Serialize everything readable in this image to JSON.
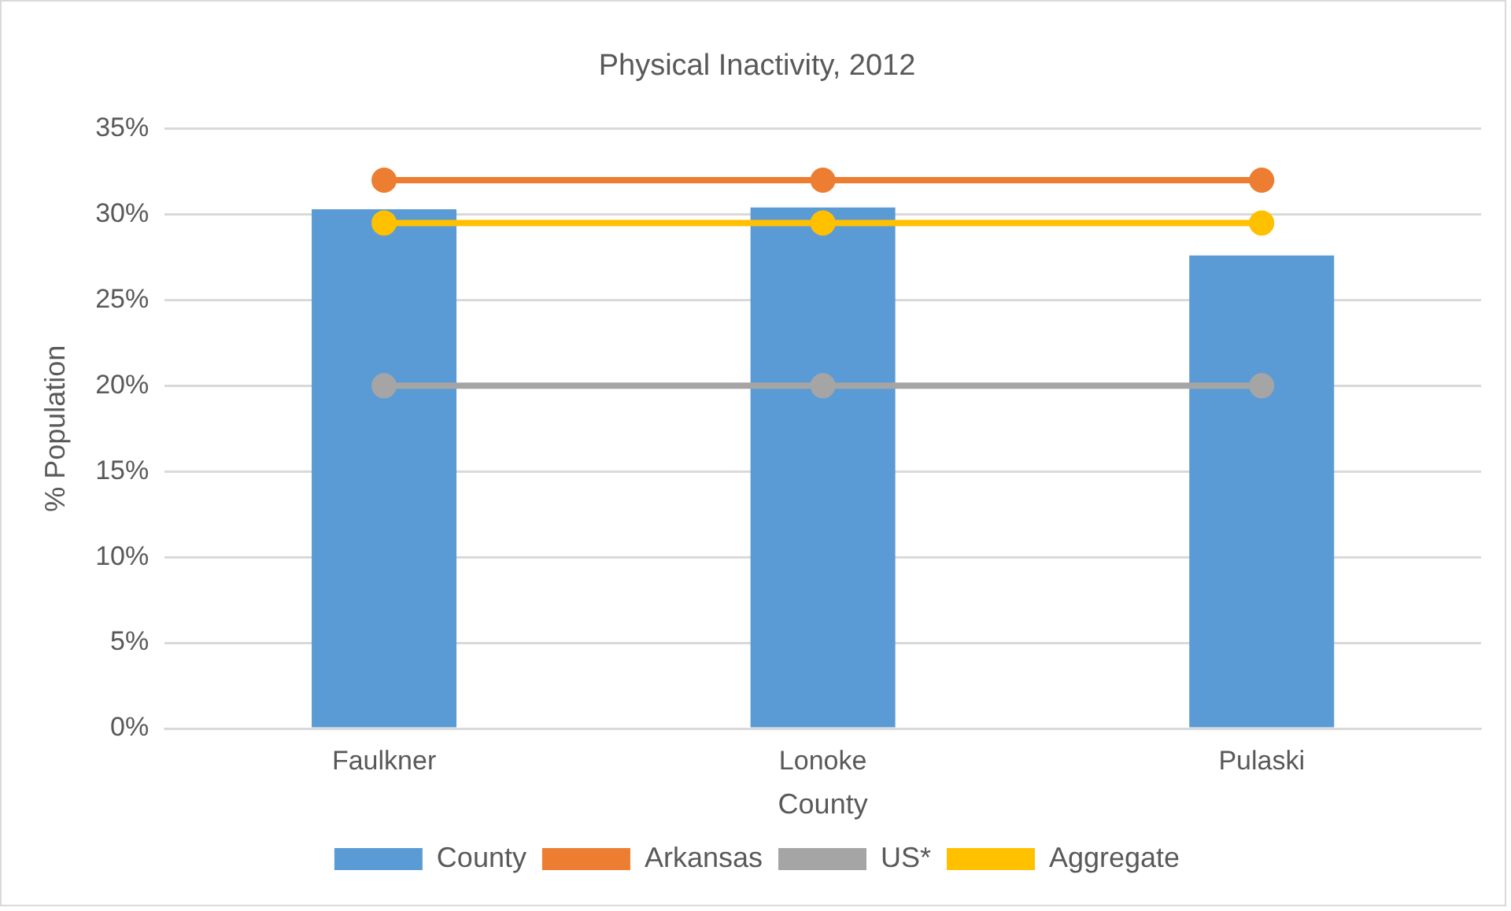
{
  "chart_data": {
    "type": "bar",
    "title": "Physical Inactivity, 2012",
    "xlabel": "County",
    "ylabel": "% Population",
    "categories": [
      "Faulkner",
      "Lonoke",
      "Pulaski"
    ],
    "series": [
      {
        "name": "County",
        "color": "#5b9bd5",
        "values": [
          30.3,
          30.4,
          27.6
        ]
      },
      {
        "name": "Arkansas",
        "type": "line",
        "color": "#ed7d31",
        "values": [
          32,
          32,
          32
        ]
      },
      {
        "name": "US*",
        "type": "line",
        "color": "#a5a5a5",
        "values": [
          20,
          20,
          20
        ]
      },
      {
        "name": "Aggregate",
        "type": "line",
        "color": "#ffc000",
        "values": [
          29.5,
          29.5,
          29.5
        ]
      }
    ],
    "ylim": [
      0,
      35
    ],
    "yticks": [
      {
        "value": 0,
        "label": "0%"
      },
      {
        "value": 5,
        "label": "5%"
      },
      {
        "value": 10,
        "label": "10%"
      },
      {
        "value": 15,
        "label": "15%"
      },
      {
        "value": 20,
        "label": "20%"
      },
      {
        "value": 25,
        "label": "25%"
      },
      {
        "value": 30,
        "label": "30%"
      },
      {
        "value": 35,
        "label": "35%"
      }
    ],
    "grid": "y",
    "legend": "bottom",
    "marker": "circle"
  }
}
